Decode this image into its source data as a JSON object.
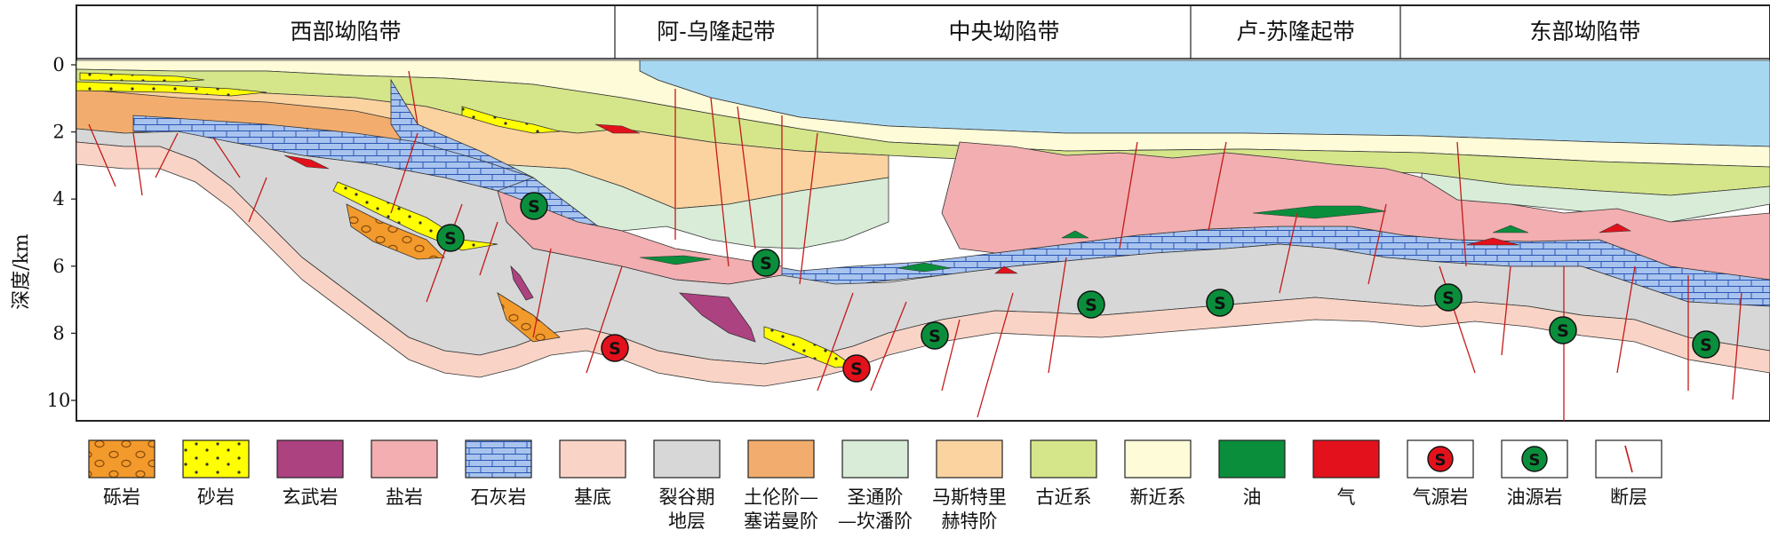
{
  "regions": [
    "西部坳陷带",
    "阿-乌隆起带",
    "中央坳陷带",
    "卢-苏隆起带",
    "东部坳陷带"
  ],
  "y_axis": {
    "label": "深度/km",
    "ticks": [
      "0",
      "2",
      "4",
      "6",
      "8",
      "10"
    ],
    "range_km": [
      0,
      10.5
    ]
  },
  "legend": [
    {
      "label": "砾岩",
      "color": "#f39a2c",
      "pattern": "conglomerate"
    },
    {
      "label": "砂岩",
      "color": "#ffff00",
      "pattern": "sandstone"
    },
    {
      "label": "玄武岩",
      "color": "#ad4281",
      "pattern": "solid"
    },
    {
      "label": "盐岩",
      "color": "#f2aeb0",
      "pattern": "solid"
    },
    {
      "label": "石灰岩",
      "color": "#a8c4ee",
      "pattern": "brick"
    },
    {
      "label": "基底",
      "color": "#f9d4c6",
      "pattern": "solid"
    },
    {
      "label": "裂谷期\n地层",
      "color": "#d7d7d7",
      "pattern": "solid"
    },
    {
      "label": "土伦阶—\n塞诺曼阶",
      "color": "#f2ad6e",
      "pattern": "solid"
    },
    {
      "label": "圣通阶\n—坎潘阶",
      "color": "#d8ecd7",
      "pattern": "solid"
    },
    {
      "label": "马斯特里\n赫特阶",
      "color": "#fbd3a0",
      "pattern": "solid"
    },
    {
      "label": "古近系",
      "color": "#d5e58a",
      "pattern": "solid"
    },
    {
      "label": "新近系",
      "color": "#fdfbd8",
      "pattern": "solid"
    },
    {
      "label": "油",
      "color": "#0a8e3c",
      "pattern": "solid"
    },
    {
      "label": "气",
      "color": "#e3111c",
      "pattern": "solid"
    },
    {
      "label": "气源岩",
      "color": "#e3111c",
      "pattern": "gas-source"
    },
    {
      "label": "油源岩",
      "color": "#0a8e3c",
      "pattern": "oil-source"
    },
    {
      "label": "断层",
      "color": "#c41a1a",
      "pattern": "fault"
    }
  ],
  "source_marker_letter": "S",
  "colors": {
    "sea": "#a7d8f2",
    "fault": "#c41a1a",
    "frame": "#222222"
  }
}
